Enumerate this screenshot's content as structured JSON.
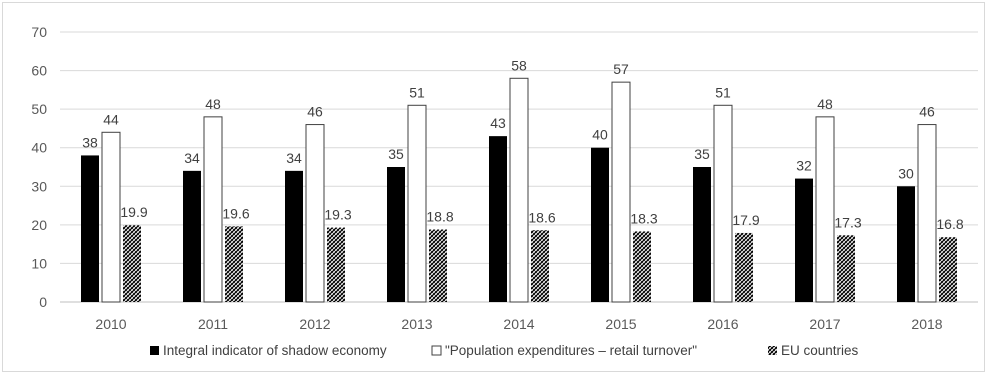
{
  "chart_data": {
    "type": "bar",
    "categories": [
      "2010",
      "2011",
      "2012",
      "2013",
      "2014",
      "2015",
      "2016",
      "2017",
      "2018"
    ],
    "series": [
      {
        "name": "Integral indicator of shadow economy",
        "values": [
          38,
          34,
          34,
          35,
          43,
          40,
          35,
          32,
          30
        ],
        "fill": "solid",
        "color": "#000000"
      },
      {
        "name": "\"Population expenditures – retail turnover\"",
        "values": [
          44,
          48,
          46,
          51,
          58,
          57,
          51,
          48,
          46
        ],
        "fill": "outline",
        "color": "#ffffff"
      },
      {
        "name": "EU countries",
        "values": [
          19.9,
          19.6,
          19.3,
          18.8,
          18.6,
          18.3,
          17.9,
          17.3,
          16.8
        ],
        "fill": "hatched",
        "color": "#000000"
      }
    ],
    "data_labels": [
      [
        "38",
        "34",
        "34",
        "35",
        "43",
        "40",
        "35",
        "32",
        "30"
      ],
      [
        "44",
        "48",
        "46",
        "51",
        "58",
        "57",
        "51",
        "48",
        "46"
      ],
      [
        "19.9",
        "19.6",
        "19.3",
        "18.8",
        "18.6",
        "18.3",
        "17.9",
        "17.3",
        "16.8"
      ]
    ],
    "ylim": [
      0,
      70
    ],
    "yticks": [
      0,
      10,
      20,
      30,
      40,
      50,
      60,
      70
    ],
    "ytick_labels": [
      "0",
      "10",
      "20",
      "30",
      "40",
      "50",
      "60",
      "70"
    ],
    "grid": true,
    "legend_position": "bottom",
    "title": "",
    "xlabel": "",
    "ylabel": ""
  }
}
